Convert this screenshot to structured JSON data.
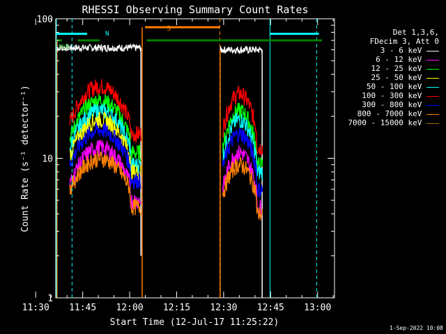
{
  "chart_data": {
    "type": "line",
    "title": "RHESSI Observing Summary Count Rates",
    "xlabel": "Start Time (12-Jul-17 11:25:22)",
    "ylabel": "Count Rate (s⁻¹ detector⁻¹)",
    "yscale": "log",
    "ylim": [
      1,
      100
    ],
    "xlim_minutes": [
      11.0,
      100.0
    ],
    "x_ticks": [
      {
        "label": "11:30",
        "min": 4.6
      },
      {
        "label": "11:45",
        "min": 19.6
      },
      {
        "label": "12:00",
        "min": 34.6
      },
      {
        "label": "12:15",
        "min": 49.6
      },
      {
        "label": "12:30",
        "min": 64.6
      },
      {
        "label": "12:45",
        "min": 79.6
      },
      {
        "label": "13:00",
        "min": 94.6
      }
    ],
    "y_ticks": [
      {
        "label": "1",
        "value": 1
      },
      {
        "label": "10",
        "value": 10
      },
      {
        "label": "100",
        "value": 100
      }
    ],
    "legend": {
      "header": [
        "Det 1,3,6,",
        "FDecim 3, Att 0"
      ],
      "entries": [
        {
          "label": "3 - 6 keV",
          "color": "#ffffff"
        },
        {
          "label": "6 - 12 keV",
          "color": "#ff00ff"
        },
        {
          "label": "12 - 25 keV",
          "color": "#00ff00"
        },
        {
          "label": "25 - 50 keV",
          "color": "#ffff00"
        },
        {
          "label": "50 - 100 keV",
          "color": "#00ffff"
        },
        {
          "label": "100 - 300 keV",
          "color": "#ff0000"
        },
        {
          "label": "300 - 800 keV",
          "color": "#0000ff"
        },
        {
          "label": "800 - 7000 keV",
          "color": "#ff8000"
        },
        {
          "label": "7000 - 15000 keV",
          "color": "#b07000"
        }
      ]
    },
    "flag_labels": {
      "n": "N",
      "s": "S",
      "rd": "RD6"
    },
    "bands": [
      {
        "name": "3 - 6 keV",
        "color": "#ffffff",
        "segments": [
          {
            "start": 11.4,
            "end": 38.2,
            "profile": "flat",
            "level": 62
          },
          {
            "start": 63.5,
            "end": 77.0,
            "profile": "flat",
            "level": 60
          }
        ]
      },
      {
        "name": "100 - 300 keV",
        "color": "#ff0000",
        "segments": [
          {
            "start": 15.5,
            "end": 38.2,
            "profile": "arc",
            "peak": 33,
            "edge": 18,
            "tail": 15
          },
          {
            "start": 64.3,
            "end": 77.0,
            "profile": "arc",
            "peak": 29,
            "edge": 16,
            "tail": 12
          }
        ]
      },
      {
        "name": "12 - 25 keV",
        "color": "#00ff00",
        "segments": [
          {
            "start": 15.5,
            "end": 38.2,
            "profile": "arc",
            "peak": 26,
            "edge": 14,
            "tail": 11
          },
          {
            "start": 64.3,
            "end": 77.0,
            "profile": "arc",
            "peak": 22,
            "edge": 12,
            "tail": 9
          }
        ]
      },
      {
        "name": "50 - 100 keV",
        "color": "#00ffff",
        "segments": [
          {
            "start": 15.5,
            "end": 38.2,
            "profile": "arc",
            "peak": 22,
            "edge": 12,
            "tail": 9
          },
          {
            "start": 64.3,
            "end": 77.0,
            "profile": "arc",
            "peak": 19,
            "edge": 10,
            "tail": 8
          }
        ]
      },
      {
        "name": "25 - 50 keV",
        "color": "#ffff00",
        "segments": [
          {
            "start": 15.5,
            "end": 38.2,
            "profile": "arc",
            "peak": 19,
            "edge": 10.5,
            "tail": 8
          }
        ]
      },
      {
        "name": "300 - 800 keV",
        "color": "#0000ff",
        "segments": [
          {
            "start": 15.5,
            "end": 38.2,
            "profile": "arc",
            "peak": 16,
            "edge": 9,
            "tail": 7
          },
          {
            "start": 64.3,
            "end": 77.0,
            "profile": "arc",
            "peak": 15,
            "edge": 8.5,
            "tail": 6
          }
        ]
      },
      {
        "name": "6 - 12 keV",
        "color": "#ff00ff",
        "segments": [
          {
            "start": 15.5,
            "end": 38.2,
            "profile": "arc",
            "peak": 12,
            "edge": 6.5,
            "tail": 5
          },
          {
            "start": 64.3,
            "end": 77.0,
            "profile": "arc",
            "peak": 11,
            "edge": 6,
            "tail": 4.5
          }
        ]
      },
      {
        "name": "800 - 7000 keV",
        "color": "#ff8000",
        "segments": [
          {
            "start": 15.5,
            "end": 38.2,
            "profile": "arc",
            "peak": 10,
            "edge": 6,
            "tail": 4.5
          },
          {
            "start": 64.3,
            "end": 77.0,
            "profile": "arc",
            "peak": 9,
            "edge": 5.5,
            "tail": 4
          }
        ]
      }
    ],
    "rd_flag": {
      "level": 70,
      "segments": [
        [
          11.0,
          13.0
        ],
        [
          18.0,
          25.0
        ],
        [
          40.0,
          64.0
        ],
        [
          64.0,
          96.0
        ]
      ]
    },
    "n_flags": {
      "level": 78,
      "segments": [
        [
          11.0,
          21.0
        ],
        [
          79.5,
          95.0
        ]
      ]
    },
    "s_flag": {
      "level": 87,
      "segments": [
        [
          39.5,
          63.5
        ]
      ]
    },
    "orbit_transitions": [
      {
        "minute": 11.4,
        "from": 1,
        "to": 70,
        "color": "#ff8000"
      },
      {
        "minute": 38.6,
        "from": 1,
        "to": 87,
        "color": "#ff8000"
      },
      {
        "minute": 38.2,
        "from": 2,
        "to": 62,
        "color": "#ffffff"
      },
      {
        "minute": 63.5,
        "from": 1,
        "to": 60,
        "color": "#ff8000"
      },
      {
        "minute": 76.9,
        "from": 1,
        "to": 60,
        "color": "#ffffff"
      }
    ],
    "vertical_markers": [
      {
        "minute": 11.2,
        "color": "#00ffff",
        "style": "solid"
      },
      {
        "minute": 16.2,
        "color": "#00ffff",
        "style": "dashed"
      },
      {
        "minute": 63.4,
        "color": "#ff8000",
        "style": "dashed"
      },
      {
        "minute": 79.4,
        "color": "#00ffff",
        "style": "solid"
      },
      {
        "minute": 94.3,
        "color": "#00ffff",
        "style": "dashed"
      }
    ]
  },
  "footer": {
    "timestamp": "1-Sep-2022 10:08"
  }
}
